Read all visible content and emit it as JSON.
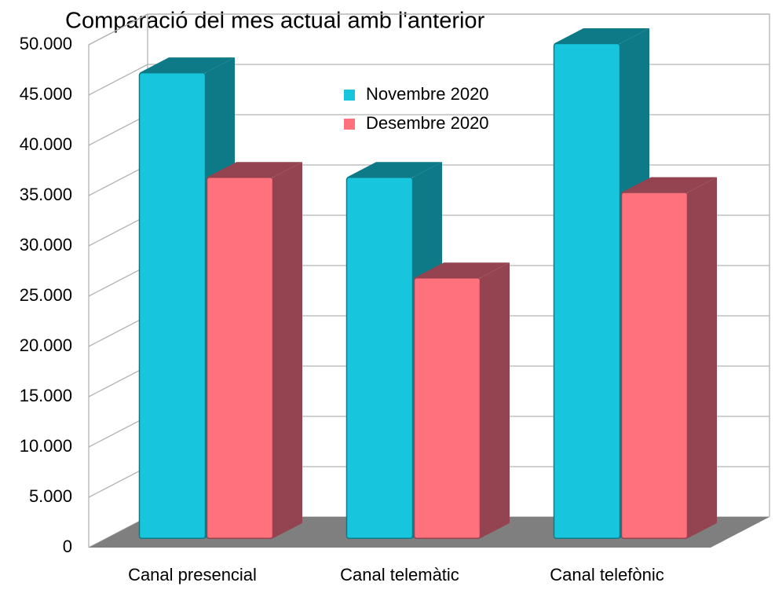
{
  "chart_data": {
    "type": "bar3d",
    "title": "Comparació del mes actual amb l'anterior",
    "categories": [
      "Canal presencial",
      "Canal telemàtic",
      "Canal telefònic"
    ],
    "series": [
      {
        "name": "Novembre 2020",
        "color": "#17c6dc",
        "side_color": "#0e7a88",
        "values": [
          46300,
          35900,
          49200
        ]
      },
      {
        "name": "Desembre 2020",
        "color": "#ff717d",
        "side_color": "#944450",
        "values": [
          35900,
          25900,
          34400
        ]
      }
    ],
    "ylim": [
      0,
      50000
    ],
    "yticks": [
      0,
      {
        "value": 5000,
        "label": "5.000"
      },
      {
        "value": 10000,
        "label": "10.000"
      },
      {
        "value": 15000,
        "label": "15.000"
      },
      {
        "value": 20000,
        "label": "20.000"
      },
      {
        "value": 25000,
        "label": "25.000"
      },
      {
        "value": 30000,
        "label": "30.000"
      },
      {
        "value": 35000,
        "label": "35.000"
      },
      {
        "value": 40000,
        "label": "40.000"
      },
      {
        "value": 45000,
        "label": "45.000"
      },
      {
        "value": 50000,
        "label": "50.000"
      }
    ],
    "grid": true
  }
}
